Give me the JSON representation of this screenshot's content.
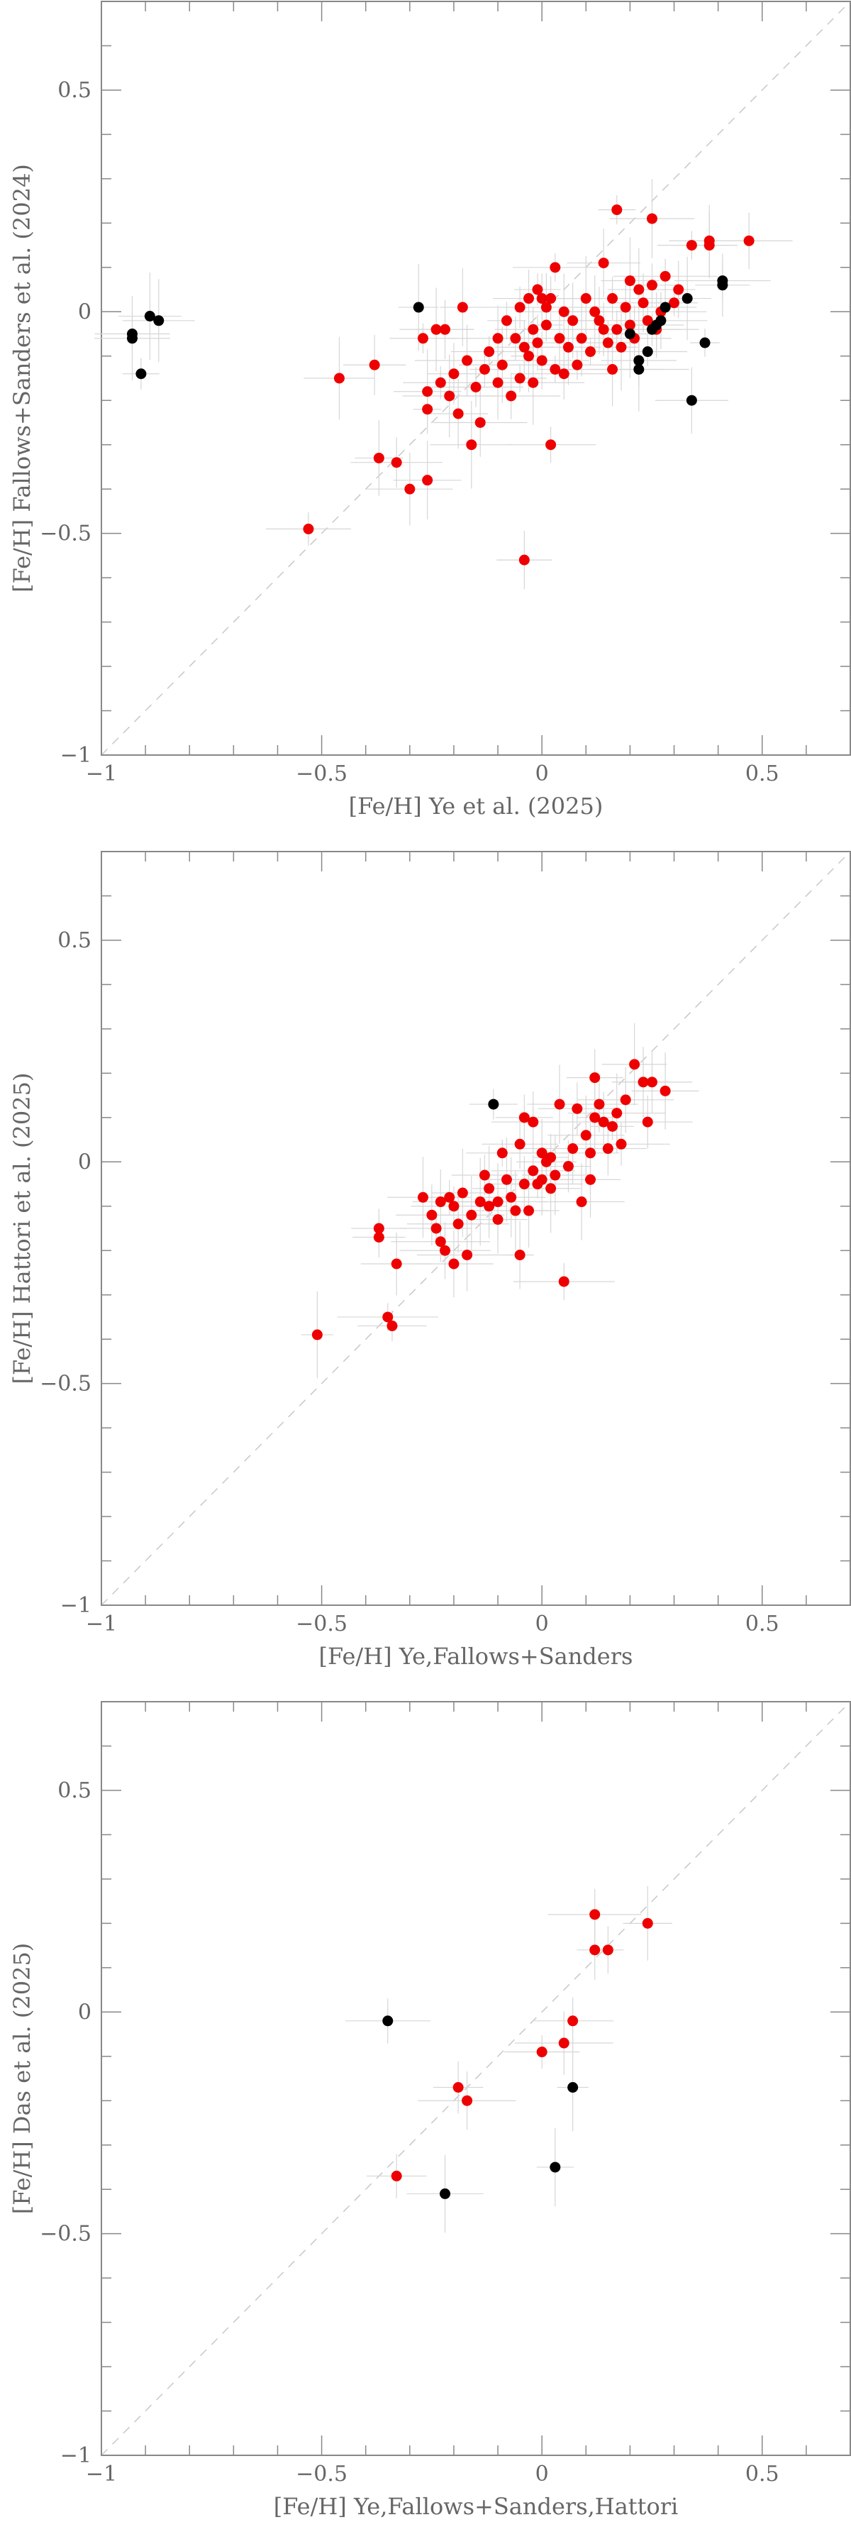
{
  "chart_data": [
    {
      "type": "scatter",
      "xlabel": "[Fe/H] Ye et al. (2025)",
      "ylabel": "[Fe/H] Fallows+Sanders et al. (2024)",
      "xlim": [
        -1.0,
        0.7
      ],
      "ylim": [
        -1.0,
        0.7
      ],
      "xticks": [
        -1,
        -0.5,
        0,
        0.5
      ],
      "yticks": [
        -1,
        -0.5,
        0,
        0.5
      ],
      "xtick_labels": [
        "−1",
        "−0.5",
        "0",
        "0.5"
      ],
      "ytick_labels": [
        "−1",
        "−0.5",
        "0",
        "0.5"
      ],
      "reference_line": "y = x (dashed)",
      "series": [
        {
          "color": "#ee0000",
          "points": [
            {
              "x": -0.53,
              "y": -0.49
            },
            {
              "x": -0.46,
              "y": -0.15
            },
            {
              "x": -0.38,
              "y": -0.12
            },
            {
              "x": -0.37,
              "y": -0.33
            },
            {
              "x": -0.33,
              "y": -0.34
            },
            {
              "x": -0.3,
              "y": -0.4
            },
            {
              "x": -0.27,
              "y": -0.06
            },
            {
              "x": -0.26,
              "y": -0.38
            },
            {
              "x": -0.26,
              "y": -0.18
            },
            {
              "x": -0.26,
              "y": -0.22
            },
            {
              "x": -0.24,
              "y": -0.04
            },
            {
              "x": -0.23,
              "y": -0.16
            },
            {
              "x": -0.22,
              "y": -0.04
            },
            {
              "x": -0.21,
              "y": -0.19
            },
            {
              "x": -0.2,
              "y": -0.14
            },
            {
              "x": -0.19,
              "y": -0.23
            },
            {
              "x": -0.18,
              "y": 0.01
            },
            {
              "x": -0.17,
              "y": -0.11
            },
            {
              "x": -0.16,
              "y": -0.3
            },
            {
              "x": -0.15,
              "y": -0.17
            },
            {
              "x": -0.14,
              "y": -0.25
            },
            {
              "x": -0.13,
              "y": -0.13
            },
            {
              "x": -0.12,
              "y": -0.09
            },
            {
              "x": -0.1,
              "y": -0.06
            },
            {
              "x": -0.1,
              "y": -0.16
            },
            {
              "x": -0.09,
              "y": -0.12
            },
            {
              "x": -0.08,
              "y": -0.02
            },
            {
              "x": -0.07,
              "y": -0.19
            },
            {
              "x": -0.06,
              "y": -0.06
            },
            {
              "x": -0.05,
              "y": -0.15
            },
            {
              "x": -0.05,
              "y": 0.01
            },
            {
              "x": -0.04,
              "y": -0.56
            },
            {
              "x": -0.04,
              "y": -0.08
            },
            {
              "x": -0.03,
              "y": 0.03
            },
            {
              "x": -0.03,
              "y": -0.1
            },
            {
              "x": -0.02,
              "y": -0.04
            },
            {
              "x": -0.02,
              "y": -0.16
            },
            {
              "x": -0.01,
              "y": 0.05
            },
            {
              "x": -0.01,
              "y": -0.07
            },
            {
              "x": 0.0,
              "y": 0.03
            },
            {
              "x": 0.0,
              "y": -0.11
            },
            {
              "x": 0.01,
              "y": 0.01
            },
            {
              "x": 0.01,
              "y": -0.03
            },
            {
              "x": 0.02,
              "y": 0.03
            },
            {
              "x": 0.02,
              "y": -0.3
            },
            {
              "x": 0.03,
              "y": 0.1
            },
            {
              "x": 0.03,
              "y": -0.13
            },
            {
              "x": 0.04,
              "y": -0.06
            },
            {
              "x": 0.05,
              "y": -0.14
            },
            {
              "x": 0.05,
              "y": 0.0
            },
            {
              "x": 0.06,
              "y": -0.08
            },
            {
              "x": 0.07,
              "y": -0.02
            },
            {
              "x": 0.08,
              "y": -0.12
            },
            {
              "x": 0.09,
              "y": -0.06
            },
            {
              "x": 0.1,
              "y": 0.03
            },
            {
              "x": 0.11,
              "y": -0.09
            },
            {
              "x": 0.12,
              "y": 0.0
            },
            {
              "x": 0.13,
              "y": -0.02
            },
            {
              "x": 0.14,
              "y": 0.11
            },
            {
              "x": 0.14,
              "y": -0.04
            },
            {
              "x": 0.15,
              "y": -0.07
            },
            {
              "x": 0.16,
              "y": 0.03
            },
            {
              "x": 0.16,
              "y": -0.13
            },
            {
              "x": 0.17,
              "y": 0.23
            },
            {
              "x": 0.17,
              "y": -0.04
            },
            {
              "x": 0.18,
              "y": -0.08
            },
            {
              "x": 0.19,
              "y": 0.01
            },
            {
              "x": 0.2,
              "y": -0.03
            },
            {
              "x": 0.2,
              "y": 0.07
            },
            {
              "x": 0.21,
              "y": -0.06
            },
            {
              "x": 0.22,
              "y": 0.05
            },
            {
              "x": 0.23,
              "y": 0.02
            },
            {
              "x": 0.24,
              "y": -0.02
            },
            {
              "x": 0.25,
              "y": 0.21
            },
            {
              "x": 0.25,
              "y": 0.06
            },
            {
              "x": 0.26,
              "y": -0.04
            },
            {
              "x": 0.27,
              "y": 0.0
            },
            {
              "x": 0.28,
              "y": 0.08
            },
            {
              "x": 0.3,
              "y": 0.02
            },
            {
              "x": 0.31,
              "y": 0.05
            },
            {
              "x": 0.34,
              "y": 0.15
            },
            {
              "x": 0.38,
              "y": 0.15
            },
            {
              "x": 0.38,
              "y": 0.16
            },
            {
              "x": 0.47,
              "y": 0.16
            }
          ]
        },
        {
          "color": "#000000",
          "points": [
            {
              "x": -0.93,
              "y": -0.06
            },
            {
              "x": -0.93,
              "y": -0.05
            },
            {
              "x": -0.91,
              "y": -0.14
            },
            {
              "x": -0.89,
              "y": -0.01
            },
            {
              "x": -0.87,
              "y": -0.02
            },
            {
              "x": -0.28,
              "y": 0.01
            },
            {
              "x": 0.2,
              "y": -0.05
            },
            {
              "x": 0.22,
              "y": -0.13
            },
            {
              "x": 0.22,
              "y": -0.11
            },
            {
              "x": 0.24,
              "y": -0.09
            },
            {
              "x": 0.25,
              "y": -0.04
            },
            {
              "x": 0.26,
              "y": -0.03
            },
            {
              "x": 0.27,
              "y": -0.02
            },
            {
              "x": 0.28,
              "y": 0.01
            },
            {
              "x": 0.33,
              "y": 0.03
            },
            {
              "x": 0.34,
              "y": -0.2
            },
            {
              "x": 0.37,
              "y": -0.07
            },
            {
              "x": 0.41,
              "y": 0.06
            },
            {
              "x": 0.41,
              "y": 0.07
            }
          ]
        }
      ]
    },
    {
      "type": "scatter",
      "xlabel": "[Fe/H] Ye,Fallows+Sanders",
      "ylabel": "[Fe/H] Hattori et al. (2025)",
      "xlim": [
        -1.0,
        0.7
      ],
      "ylim": [
        -1.0,
        0.7
      ],
      "xticks": [
        -1,
        -0.5,
        0,
        0.5
      ],
      "yticks": [
        -1,
        -0.5,
        0,
        0.5
      ],
      "xtick_labels": [
        "−1",
        "−0.5",
        "0",
        "0.5"
      ],
      "ytick_labels": [
        "−1",
        "−0.5",
        "0",
        "0.5"
      ],
      "reference_line": "y = x (dashed)",
      "series": [
        {
          "color": "#ee0000",
          "points": [
            {
              "x": -0.51,
              "y": -0.39
            },
            {
              "x": -0.37,
              "y": -0.15
            },
            {
              "x": -0.37,
              "y": -0.17
            },
            {
              "x": -0.35,
              "y": -0.35
            },
            {
              "x": -0.34,
              "y": -0.37
            },
            {
              "x": -0.33,
              "y": -0.23
            },
            {
              "x": -0.27,
              "y": -0.08
            },
            {
              "x": -0.25,
              "y": -0.12
            },
            {
              "x": -0.24,
              "y": -0.15
            },
            {
              "x": -0.23,
              "y": -0.09
            },
            {
              "x": -0.23,
              "y": -0.18
            },
            {
              "x": -0.22,
              "y": -0.2
            },
            {
              "x": -0.21,
              "y": -0.08
            },
            {
              "x": -0.2,
              "y": -0.1
            },
            {
              "x": -0.2,
              "y": -0.23
            },
            {
              "x": -0.19,
              "y": -0.14
            },
            {
              "x": -0.18,
              "y": -0.07
            },
            {
              "x": -0.17,
              "y": -0.21
            },
            {
              "x": -0.16,
              "y": -0.12
            },
            {
              "x": -0.14,
              "y": -0.09
            },
            {
              "x": -0.13,
              "y": -0.03
            },
            {
              "x": -0.12,
              "y": -0.1
            },
            {
              "x": -0.12,
              "y": -0.06
            },
            {
              "x": -0.1,
              "y": -0.13
            },
            {
              "x": -0.1,
              "y": -0.09
            },
            {
              "x": -0.09,
              "y": 0.02
            },
            {
              "x": -0.08,
              "y": -0.04
            },
            {
              "x": -0.07,
              "y": -0.08
            },
            {
              "x": -0.06,
              "y": -0.11
            },
            {
              "x": -0.05,
              "y": -0.21
            },
            {
              "x": -0.05,
              "y": 0.04
            },
            {
              "x": -0.04,
              "y": -0.05
            },
            {
              "x": -0.04,
              "y": 0.1
            },
            {
              "x": -0.03,
              "y": -0.11
            },
            {
              "x": -0.02,
              "y": -0.02
            },
            {
              "x": -0.02,
              "y": 0.09
            },
            {
              "x": -0.01,
              "y": -0.05
            },
            {
              "x": 0.0,
              "y": -0.04
            },
            {
              "x": 0.0,
              "y": 0.02
            },
            {
              "x": 0.01,
              "y": 0.0
            },
            {
              "x": 0.02,
              "y": -0.06
            },
            {
              "x": 0.02,
              "y": 0.01
            },
            {
              "x": 0.03,
              "y": -0.03
            },
            {
              "x": 0.04,
              "y": 0.13
            },
            {
              "x": 0.05,
              "y": -0.27
            },
            {
              "x": 0.06,
              "y": -0.01
            },
            {
              "x": 0.07,
              "y": 0.03
            },
            {
              "x": 0.08,
              "y": 0.12
            },
            {
              "x": 0.09,
              "y": -0.09
            },
            {
              "x": 0.1,
              "y": 0.06
            },
            {
              "x": 0.11,
              "y": 0.02
            },
            {
              "x": 0.11,
              "y": -0.04
            },
            {
              "x": 0.12,
              "y": 0.1
            },
            {
              "x": 0.12,
              "y": 0.19
            },
            {
              "x": 0.13,
              "y": 0.13
            },
            {
              "x": 0.14,
              "y": 0.09
            },
            {
              "x": 0.15,
              "y": 0.03
            },
            {
              "x": 0.16,
              "y": 0.08
            },
            {
              "x": 0.17,
              "y": 0.11
            },
            {
              "x": 0.18,
              "y": 0.04
            },
            {
              "x": 0.19,
              "y": 0.14
            },
            {
              "x": 0.21,
              "y": 0.22
            },
            {
              "x": 0.23,
              "y": 0.18
            },
            {
              "x": 0.24,
              "y": 0.09
            },
            {
              "x": 0.25,
              "y": 0.18
            },
            {
              "x": 0.28,
              "y": 0.16
            }
          ]
        },
        {
          "color": "#000000",
          "points": [
            {
              "x": -0.11,
              "y": 0.13
            }
          ]
        }
      ]
    },
    {
      "type": "scatter",
      "xlabel": "[Fe/H] Ye,Fallows+Sanders,Hattori",
      "ylabel": "[Fe/H] Das et al. (2025)",
      "xlim": [
        -1.0,
        0.7
      ],
      "ylim": [
        -1.0,
        0.7
      ],
      "xticks": [
        -1,
        -0.5,
        0,
        0.5
      ],
      "yticks": [
        -1,
        -0.5,
        0,
        0.5
      ],
      "xtick_labels": [
        "−1",
        "−0.5",
        "0",
        "0.5"
      ],
      "ytick_labels": [
        "−1",
        "−0.5",
        "0",
        "0.5"
      ],
      "reference_line": "y = x (dashed)",
      "series": [
        {
          "color": "#ee0000",
          "points": [
            {
              "x": -0.33,
              "y": -0.37
            },
            {
              "x": -0.19,
              "y": -0.17
            },
            {
              "x": -0.17,
              "y": -0.2
            },
            {
              "x": 0.0,
              "y": -0.09
            },
            {
              "x": 0.05,
              "y": -0.07
            },
            {
              "x": 0.07,
              "y": -0.02
            },
            {
              "x": 0.12,
              "y": 0.14
            },
            {
              "x": 0.12,
              "y": 0.22
            },
            {
              "x": 0.15,
              "y": 0.14
            },
            {
              "x": 0.24,
              "y": 0.2
            }
          ]
        },
        {
          "color": "#000000",
          "points": [
            {
              "x": -0.35,
              "y": -0.02
            },
            {
              "x": -0.22,
              "y": -0.41
            },
            {
              "x": 0.03,
              "y": -0.35
            },
            {
              "x": 0.07,
              "y": -0.17
            }
          ]
        }
      ]
    }
  ]
}
